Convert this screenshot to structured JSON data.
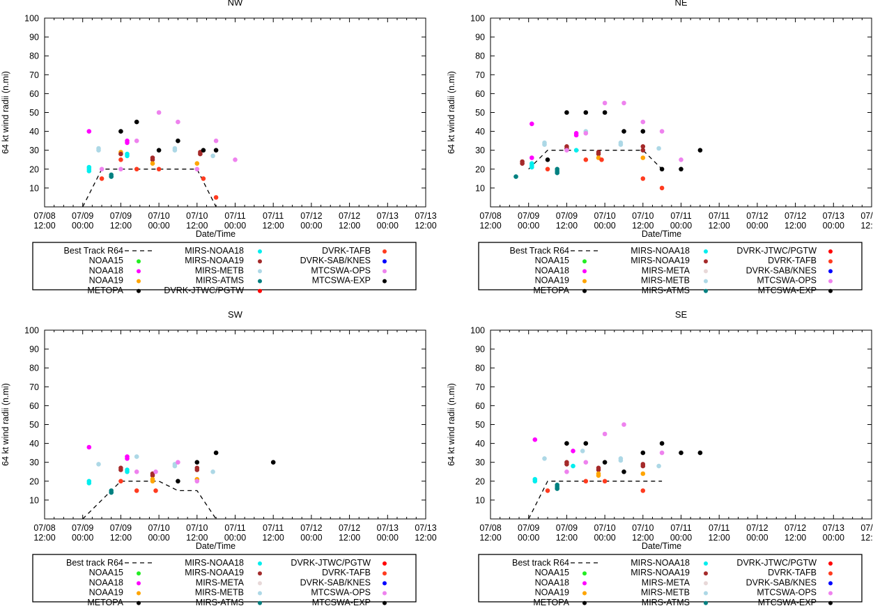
{
  "x_tick_labels": [
    [
      "07/08",
      "12:00"
    ],
    [
      "07/09",
      "00:00"
    ],
    [
      "07/09",
      "12:00"
    ],
    [
      "07/10",
      "00:00"
    ],
    [
      "07/10",
      "12:00"
    ],
    [
      "07/11",
      "00:00"
    ],
    [
      "07/11",
      "12:00"
    ],
    [
      "07/12",
      "00:00"
    ],
    [
      "07/12",
      "12:00"
    ],
    [
      "07/13",
      "00:00"
    ],
    [
      "07/13",
      "12:00"
    ]
  ],
  "chart_data": [
    {
      "type": "scatter",
      "title": "NW",
      "xlabel": "Date/Time",
      "ylabel": "64 kt wind radii (n.mi)",
      "xlim": [
        0,
        120
      ],
      "ylim": [
        0,
        100
      ],
      "yticks": [
        10,
        20,
        30,
        40,
        50,
        60,
        70,
        80,
        90,
        100
      ],
      "best_track": [
        [
          12,
          0
        ],
        [
          18,
          20
        ],
        [
          48,
          20
        ],
        [
          54,
          0
        ]
      ],
      "legend": [
        {
          "name": "Best Track R64",
          "color": "#000000",
          "line": true
        },
        {
          "name": "NOAA15",
          "color": "#22ee22"
        },
        {
          "name": "NOAA18",
          "color": "#ff00ff"
        },
        {
          "name": "NOAA19",
          "color": "#ffa500"
        },
        {
          "name": "METOPA",
          "color": "#000000"
        },
        {
          "name": "MIRS-NOAA18",
          "color": "#00eeee"
        },
        {
          "name": "MIRS-NOAA19",
          "color": "#a52a2a"
        },
        {
          "name": "MIRS-METB",
          "color": "#add8e6"
        },
        {
          "name": "MIRS-ATMS",
          "color": "#008080"
        },
        {
          "name": "DVRK-JTWC/PGTW",
          "color": "#ff0000"
        },
        {
          "name": "DVRK-TAFB",
          "color": "#ff3b1f"
        },
        {
          "name": "DVRK-SAB/KNES",
          "color": "#0000ff"
        },
        {
          "name": "MTCSWA-OPS",
          "color": "#ee82ee"
        },
        {
          "name": "MTCSWA-EXP",
          "color": "#000000"
        }
      ],
      "points": [
        [
          14,
          40,
          "#ff00ff"
        ],
        [
          14,
          21,
          "#00eeee"
        ],
        [
          14,
          20,
          "#00eeee"
        ],
        [
          14,
          19,
          "#00eeee"
        ],
        [
          17,
          31,
          "#add8e6"
        ],
        [
          17,
          30,
          "#add8e6"
        ],
        [
          18,
          20,
          "#ee82ee"
        ],
        [
          18,
          15,
          "#ff3b1f"
        ],
        [
          21,
          17,
          "#008080"
        ],
        [
          21,
          16,
          "#008080"
        ],
        [
          24,
          40,
          "#000000"
        ],
        [
          24,
          29,
          "#ffa500"
        ],
        [
          24,
          28,
          "#a52a2a"
        ],
        [
          24,
          25,
          "#ff3b1f"
        ],
        [
          24,
          20,
          "#ee82ee"
        ],
        [
          26,
          35,
          "#ff00ff"
        ],
        [
          26,
          34,
          "#ff00ff"
        ],
        [
          26,
          28,
          "#00eeee"
        ],
        [
          26,
          27,
          "#00eeee"
        ],
        [
          29,
          45,
          "#000000"
        ],
        [
          29,
          35,
          "#ee82ee"
        ],
        [
          29,
          20,
          "#ff3b1f"
        ],
        [
          34,
          26,
          "#a52a2a"
        ],
        [
          34,
          25,
          "#a52a2a"
        ],
        [
          34,
          23,
          "#ffa500"
        ],
        [
          36,
          50,
          "#ee82ee"
        ],
        [
          36,
          30,
          "#000000"
        ],
        [
          36,
          20,
          "#ff3b1f"
        ],
        [
          41,
          31,
          "#add8e6"
        ],
        [
          41,
          30,
          "#add8e6"
        ],
        [
          42,
          45,
          "#ee82ee"
        ],
        [
          42,
          35,
          "#000000"
        ],
        [
          48,
          23,
          "#ffa500"
        ],
        [
          48,
          20,
          "#ee82ee"
        ],
        [
          49,
          29,
          "#a52a2a"
        ],
        [
          49,
          28,
          "#a52a2a"
        ],
        [
          50,
          30,
          "#000000"
        ],
        [
          50,
          15,
          "#ff3b1f"
        ],
        [
          53,
          27,
          "#add8e6"
        ],
        [
          54,
          35,
          "#ee82ee"
        ],
        [
          54,
          30,
          "#000000"
        ],
        [
          54,
          5,
          "#ff3b1f"
        ],
        [
          60,
          25,
          "#ee82ee"
        ]
      ]
    },
    {
      "type": "scatter",
      "title": "NE",
      "xlabel": "Date/Time",
      "ylabel": "64 kt wind radii (n.mi)",
      "xlim": [
        0,
        120
      ],
      "ylim": [
        0,
        100
      ],
      "yticks": [
        10,
        20,
        30,
        40,
        50,
        60,
        70,
        80,
        90,
        100
      ],
      "best_track": [
        [
          12,
          20
        ],
        [
          18,
          30
        ],
        [
          48,
          30
        ],
        [
          54,
          20
        ]
      ],
      "legend": [
        {
          "name": "Best Track R64",
          "color": "#000000",
          "line": true
        },
        {
          "name": "NOAA15",
          "color": "#22ee22"
        },
        {
          "name": "NOAA18",
          "color": "#ff00ff"
        },
        {
          "name": "NOAA19",
          "color": "#ffa500"
        },
        {
          "name": "METOPA",
          "color": "#000000"
        },
        {
          "name": "MIRS-NOAA18",
          "color": "#00eeee"
        },
        {
          "name": "MIRS-NOAA19",
          "color": "#a52a2a"
        },
        {
          "name": "MIRS-META",
          "color": "#e8d8d8"
        },
        {
          "name": "MIRS-METB",
          "color": "#add8e6"
        },
        {
          "name": "MIRS-ATMS",
          "color": "#008080"
        },
        {
          "name": "DVRK-JTWC/PGTW",
          "color": "#ff0000"
        },
        {
          "name": "DVRK-TAFB",
          "color": "#ff3b1f"
        },
        {
          "name": "DVRK-SAB/KNES",
          "color": "#0000ff"
        },
        {
          "name": "MTCSWA-OPS",
          "color": "#ee82ee"
        },
        {
          "name": "MTCSWA-EXP",
          "color": "#000000"
        }
      ],
      "points": [
        [
          8,
          16,
          "#008080"
        ],
        [
          10,
          24,
          "#a52a2a"
        ],
        [
          10,
          23,
          "#a52a2a"
        ],
        [
          13,
          44,
          "#ff00ff"
        ],
        [
          13,
          26,
          "#ff00ff"
        ],
        [
          13,
          23,
          "#00eeee"
        ],
        [
          13,
          22,
          "#00eeee"
        ],
        [
          13,
          21,
          "#00eeee"
        ],
        [
          17,
          34,
          "#add8e6"
        ],
        [
          17,
          33,
          "#add8e6"
        ],
        [
          18,
          25,
          "#000000"
        ],
        [
          18,
          20,
          "#ff3b1f"
        ],
        [
          21,
          20,
          "#008080"
        ],
        [
          21,
          19,
          "#008080"
        ],
        [
          21,
          18,
          "#008080"
        ],
        [
          24,
          50,
          "#000000"
        ],
        [
          24,
          32,
          "#a52a2a"
        ],
        [
          24,
          31,
          "#a52a2a"
        ],
        [
          24,
          30,
          "#ee82ee"
        ],
        [
          27,
          39,
          "#ff00ff"
        ],
        [
          27,
          38,
          "#ff00ff"
        ],
        [
          27,
          30,
          "#00eeee"
        ],
        [
          30,
          40,
          "#add8e6"
        ],
        [
          30,
          39,
          "#ee82ee"
        ],
        [
          30,
          50,
          "#000000"
        ],
        [
          30,
          25,
          "#ff3b1f"
        ],
        [
          34,
          29,
          "#a52a2a"
        ],
        [
          34,
          28,
          "#a52a2a"
        ],
        [
          34,
          26,
          "#ffa500"
        ],
        [
          35,
          25,
          "#ff3b1f"
        ],
        [
          36,
          50,
          "#000000"
        ],
        [
          36,
          55,
          "#ee82ee"
        ],
        [
          41,
          34,
          "#add8e6"
        ],
        [
          41,
          33,
          "#add8e6"
        ],
        [
          42,
          55,
          "#ee82ee"
        ],
        [
          42,
          40,
          "#000000"
        ],
        [
          48,
          40,
          "#000000"
        ],
        [
          48,
          45,
          "#ee82ee"
        ],
        [
          48,
          32,
          "#a52a2a"
        ],
        [
          48,
          30,
          "#a52a2a"
        ],
        [
          48,
          26,
          "#ffa500"
        ],
        [
          48,
          15,
          "#ff3b1f"
        ],
        [
          53,
          31,
          "#add8e6"
        ],
        [
          54,
          40,
          "#ee82ee"
        ],
        [
          54,
          20,
          "#000000"
        ],
        [
          54,
          10,
          "#ff3b1f"
        ],
        [
          60,
          25,
          "#ee82ee"
        ],
        [
          60,
          20,
          "#000000"
        ],
        [
          66,
          30,
          "#000000"
        ]
      ]
    },
    {
      "type": "scatter",
      "title": "SW",
      "xlabel": "Date/Time",
      "ylabel": "64 kt wind radii (n.mi)",
      "xlim": [
        0,
        120
      ],
      "ylim": [
        0,
        100
      ],
      "yticks": [
        10,
        20,
        30,
        40,
        50,
        60,
        70,
        80,
        90,
        100
      ],
      "best_track": [
        [
          12,
          0
        ],
        [
          24,
          20
        ],
        [
          36,
          20
        ],
        [
          42,
          15
        ],
        [
          48,
          15
        ],
        [
          54,
          0
        ]
      ],
      "legend": [
        {
          "name": "Best track R64",
          "color": "#000000",
          "line": true
        },
        {
          "name": "NOAA15",
          "color": "#22ee22"
        },
        {
          "name": "NOAA18",
          "color": "#ff00ff"
        },
        {
          "name": "NOAA19",
          "color": "#ffa500"
        },
        {
          "name": "METOPA",
          "color": "#000000"
        },
        {
          "name": "MIRS-NOAA18",
          "color": "#00eeee"
        },
        {
          "name": "MIRS-NOAA19",
          "color": "#a52a2a"
        },
        {
          "name": "MIRS-META",
          "color": "#e8d8d8"
        },
        {
          "name": "MIRS-METB",
          "color": "#add8e6"
        },
        {
          "name": "MIRS-ATMS",
          "color": "#008080"
        },
        {
          "name": "DVRK-JTWC/PGTW",
          "color": "#ff0000"
        },
        {
          "name": "DVRK-TAFB",
          "color": "#ff3b1f"
        },
        {
          "name": "DVRK-SAB/KNES",
          "color": "#0000ff"
        },
        {
          "name": "MTCSWA-OPS",
          "color": "#ee82ee"
        },
        {
          "name": "MTCSWA-EXP",
          "color": "#000000"
        }
      ],
      "points": [
        [
          14,
          38,
          "#ff00ff"
        ],
        [
          14,
          20,
          "#00eeee"
        ],
        [
          14,
          19,
          "#00eeee"
        ],
        [
          17,
          29,
          "#add8e6"
        ],
        [
          21,
          15,
          "#008080"
        ],
        [
          21,
          14,
          "#008080"
        ],
        [
          24,
          27,
          "#a52a2a"
        ],
        [
          24,
          26,
          "#a52a2a"
        ],
        [
          24,
          20,
          "#ff3b1f"
        ],
        [
          26,
          33,
          "#ff00ff"
        ],
        [
          26,
          32,
          "#ff00ff"
        ],
        [
          26,
          26,
          "#00eeee"
        ],
        [
          26,
          25,
          "#00eeee"
        ],
        [
          29,
          33,
          "#add8e6"
        ],
        [
          29,
          25,
          "#ee82ee"
        ],
        [
          29,
          15,
          "#ff3b1f"
        ],
        [
          34,
          24,
          "#a52a2a"
        ],
        [
          34,
          23,
          "#a52a2a"
        ],
        [
          34,
          21,
          "#ffa500"
        ],
        [
          34,
          20,
          "#ffa500"
        ],
        [
          35,
          25,
          "#ee82ee"
        ],
        [
          35,
          15,
          "#ff3b1f"
        ],
        [
          41,
          29,
          "#add8e6"
        ],
        [
          41,
          28,
          "#add8e6"
        ],
        [
          42,
          30,
          "#ee82ee"
        ],
        [
          42,
          20,
          "#000000"
        ],
        [
          48,
          27,
          "#a52a2a"
        ],
        [
          48,
          26,
          "#a52a2a"
        ],
        [
          48,
          21,
          "#ffa500"
        ],
        [
          48,
          20,
          "#ee82ee"
        ],
        [
          48,
          30,
          "#000000"
        ],
        [
          53,
          25,
          "#add8e6"
        ],
        [
          54,
          35,
          "#000000"
        ],
        [
          72,
          30,
          "#000000"
        ]
      ]
    },
    {
      "type": "scatter",
      "title": "SE",
      "xlabel": "Date/Time",
      "ylabel": "64 kt wind radii (n.mi)",
      "xlim": [
        0,
        120
      ],
      "ylim": [
        0,
        100
      ],
      "yticks": [
        10,
        20,
        30,
        40,
        50,
        60,
        70,
        80,
        90,
        100
      ],
      "best_track": [
        [
          12,
          0
        ],
        [
          18,
          20
        ],
        [
          54,
          20
        ]
      ],
      "legend": [
        {
          "name": "Best track R64",
          "color": "#000000",
          "line": true
        },
        {
          "name": "NOAA15",
          "color": "#22ee22"
        },
        {
          "name": "NOAA18",
          "color": "#ff00ff"
        },
        {
          "name": "NOAA19",
          "color": "#ffa500"
        },
        {
          "name": "METOPA",
          "color": "#000000"
        },
        {
          "name": "MIRS-NOAA18",
          "color": "#00eeee"
        },
        {
          "name": "MIRS-NOAA19",
          "color": "#a52a2a"
        },
        {
          "name": "MIRS-META",
          "color": "#e8d8d8"
        },
        {
          "name": "MIRS-METB",
          "color": "#add8e6"
        },
        {
          "name": "MIRS-ATMS",
          "color": "#008080"
        },
        {
          "name": "DVRK-JTWC/PGTW",
          "color": "#ff0000"
        },
        {
          "name": "DVRK-TAFB",
          "color": "#ff3b1f"
        },
        {
          "name": "DVRK-SAB/KNES",
          "color": "#0000ff"
        },
        {
          "name": "MTCSWA-OPS",
          "color": "#ee82ee"
        },
        {
          "name": "MTCSWA-EXP",
          "color": "#000000"
        }
      ],
      "points": [
        [
          14,
          42,
          "#ff00ff"
        ],
        [
          14,
          21,
          "#00eeee"
        ],
        [
          14,
          20,
          "#00eeee"
        ],
        [
          17,
          32,
          "#add8e6"
        ],
        [
          18,
          15,
          "#ff3b1f"
        ],
        [
          21,
          18,
          "#008080"
        ],
        [
          21,
          17,
          "#008080"
        ],
        [
          21,
          16,
          "#008080"
        ],
        [
          24,
          40,
          "#000000"
        ],
        [
          24,
          30,
          "#a52a2a"
        ],
        [
          24,
          29,
          "#a52a2a"
        ],
        [
          24,
          25,
          "#ee82ee"
        ],
        [
          26,
          36,
          "#ff00ff"
        ],
        [
          26,
          28,
          "#00eeee"
        ],
        [
          29,
          36,
          "#add8e6"
        ],
        [
          30,
          40,
          "#000000"
        ],
        [
          30,
          30,
          "#ee82ee"
        ],
        [
          30,
          20,
          "#ff3b1f"
        ],
        [
          34,
          27,
          "#a52a2a"
        ],
        [
          34,
          26,
          "#a52a2a"
        ],
        [
          34,
          24,
          "#ffa500"
        ],
        [
          34,
          23,
          "#ffa500"
        ],
        [
          36,
          45,
          "#ee82ee"
        ],
        [
          36,
          30,
          "#000000"
        ],
        [
          36,
          20,
          "#ff3b1f"
        ],
        [
          41,
          32,
          "#add8e6"
        ],
        [
          41,
          31,
          "#add8e6"
        ],
        [
          42,
          50,
          "#ee82ee"
        ],
        [
          42,
          25,
          "#000000"
        ],
        [
          48,
          35,
          "#000000"
        ],
        [
          48,
          29,
          "#a52a2a"
        ],
        [
          48,
          28,
          "#a52a2a"
        ],
        [
          48,
          24,
          "#ffa500"
        ],
        [
          48,
          15,
          "#ff3b1f"
        ],
        [
          53,
          28,
          "#add8e6"
        ],
        [
          54,
          40,
          "#000000"
        ],
        [
          54,
          35,
          "#ee82ee"
        ],
        [
          60,
          35,
          "#000000"
        ],
        [
          66,
          35,
          "#000000"
        ]
      ]
    }
  ]
}
